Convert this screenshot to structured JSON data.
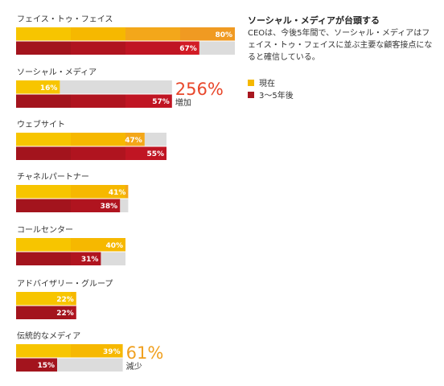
{
  "sidebar": {
    "title": "ソーシャル・メディアが台頭する",
    "description": "CEOは、今後5年間で、ソーシャル・メディアはフェイス・トゥ・フェイスに並ぶ主要な顧客接点になると確信している。"
  },
  "chart_data": {
    "type": "bar",
    "orientation": "horizontal",
    "title": "",
    "xlabel": "",
    "ylabel": "",
    "xlim": [
      0,
      100
    ],
    "legend": "right",
    "colors": {
      "current": "#f5b800",
      "future": "#a8171f",
      "remainder": "#dcdcdc",
      "growth": "#e8472b",
      "decline": "#f0a020"
    },
    "categories": [
      "フェイス・トゥ・フェイス",
      "ソーシャル・メディア",
      "ウェブサイト",
      "チャネルパートナー",
      "コールセンター",
      "アドバイザリー・グループ",
      "伝統的なメディア"
    ],
    "series": [
      {
        "name": "現在",
        "values": [
          80,
          16,
          47,
          41,
          40,
          22,
          39
        ],
        "labels": [
          "80%",
          "16%",
          "47%",
          "41%",
          "40%",
          "22%",
          "39%"
        ]
      },
      {
        "name": "3〜5年後",
        "values": [
          67,
          57,
          55,
          38,
          31,
          22,
          15
        ],
        "labels": [
          "67%",
          "57%",
          "55%",
          "38%",
          "31%",
          "22%",
          "15%"
        ]
      }
    ],
    "annotations": [
      {
        "category": "ソーシャル・メディア",
        "value": "256%",
        "note": "増加",
        "kind": "growth"
      },
      {
        "category": "伝統的なメディア",
        "value": "61%",
        "note": "減少",
        "kind": "decline"
      }
    ]
  }
}
